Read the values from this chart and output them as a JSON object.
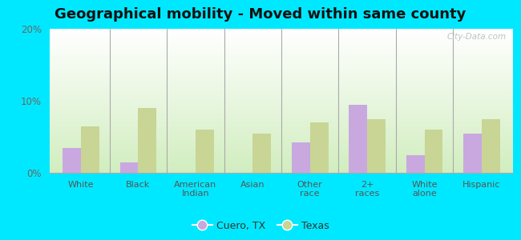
{
  "title": "Geographical mobility - Moved within same county",
  "categories": [
    "White",
    "Black",
    "American\nIndian",
    "Asian",
    "Other\nrace",
    "2+\nraces",
    "White\nalone",
    "Hispanic"
  ],
  "cuero_values": [
    3.5,
    1.5,
    0,
    0,
    4.2,
    9.5,
    2.5,
    5.5
  ],
  "texas_values": [
    6.5,
    9.0,
    6.0,
    5.5,
    7.0,
    7.5,
    6.0,
    7.5
  ],
  "cuero_color": "#c9a8e0",
  "texas_color": "#c8d595",
  "ylim": [
    0,
    20
  ],
  "yticks": [
    0,
    10,
    20
  ],
  "ytick_labels": [
    "0%",
    "10%",
    "20%"
  ],
  "background_outer": "#00e8ff",
  "legend_labels": [
    "Cuero, TX",
    "Texas"
  ],
  "bar_width": 0.32,
  "title_fontsize": 13,
  "watermark": "City-Data.com"
}
